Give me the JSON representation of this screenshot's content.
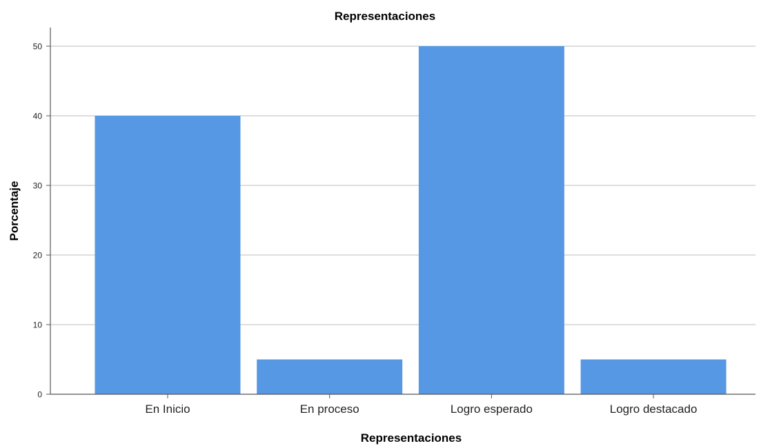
{
  "chart_data": {
    "type": "bar",
    "title": "Representaciones",
    "xlabel": "Representaciones",
    "ylabel": "Porcentaje",
    "categories": [
      "En Inicio",
      "En proceso",
      "Logro esperado",
      "Logro destacado"
    ],
    "values": [
      40,
      5,
      50,
      5
    ],
    "ylim": [
      0,
      52.5
    ],
    "yticks": [
      0,
      10,
      20,
      30,
      40,
      50
    ],
    "grid": true,
    "colors": {
      "bar": "#5698e3",
      "grid": "#d4d4d4",
      "axis": "#555555",
      "text": "#000000",
      "tick_text": "#222222"
    }
  }
}
